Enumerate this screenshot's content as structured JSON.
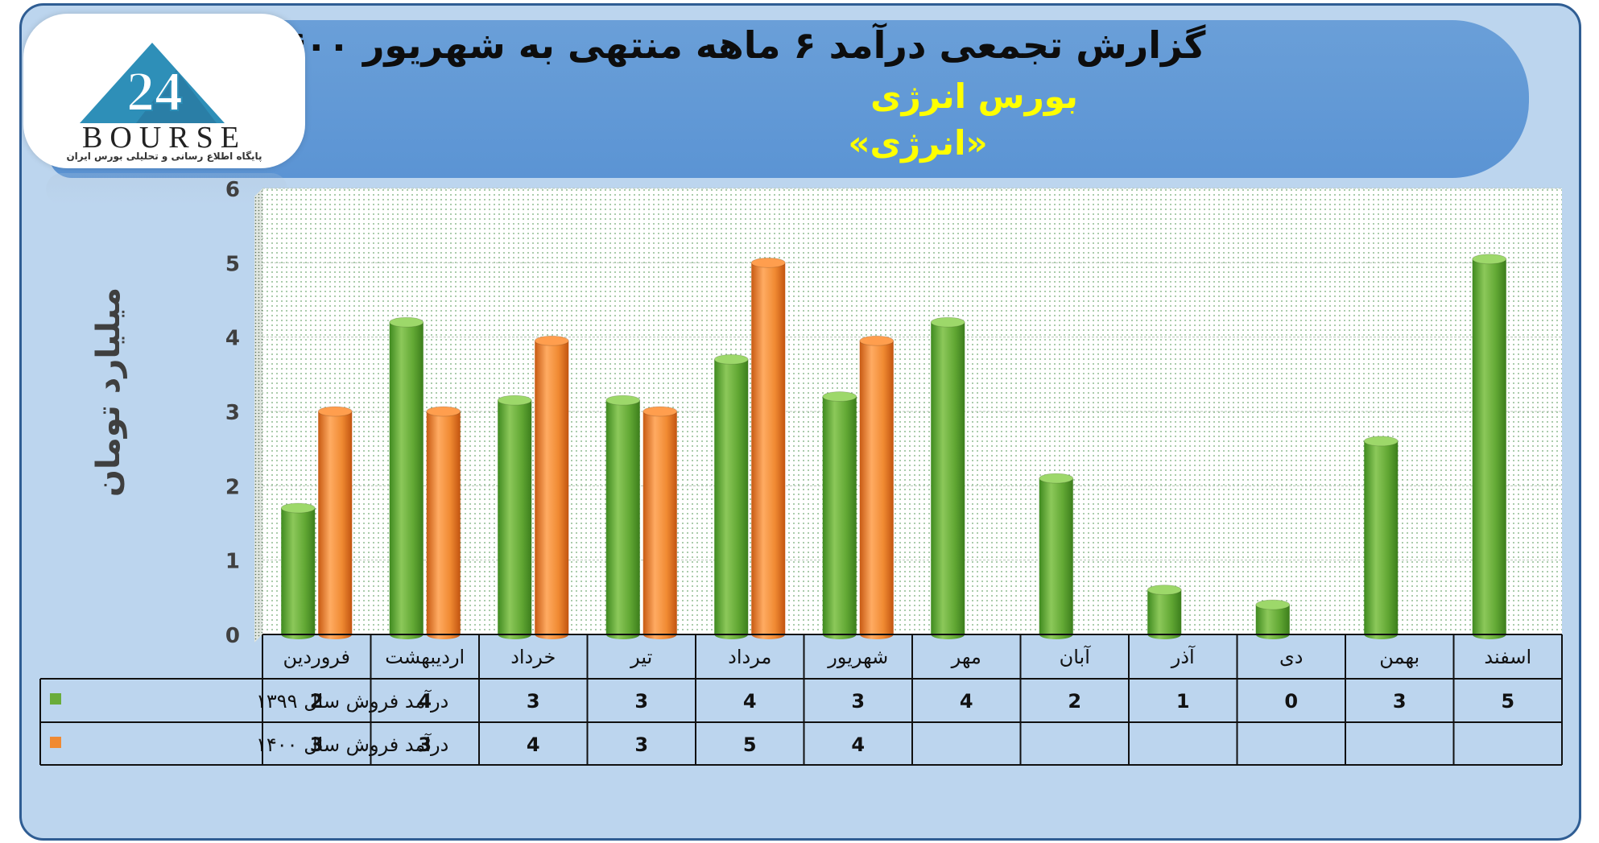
{
  "header": {
    "title": "گزارش تجمعی درآمد ۶ ماهه منتهی به شهریور ۱۴۰۰",
    "subtitle": "بورس انرژی",
    "subtitle2": "«انرژی»"
  },
  "logo": {
    "text": "BOURSE",
    "subtext": "پایگاه اطلاع رسانی و تحلیلی بورس ایران"
  },
  "colors": {
    "series_1399": "#6aac3a",
    "series_1400": "#f08a32",
    "frame_border": "#2f5d93",
    "header_bg": "#5b94d4",
    "subtitle": "#ffff00"
  },
  "chart_data": {
    "type": "bar",
    "ylabel": "میلیارد تومان",
    "ylim": [
      0,
      6
    ],
    "yticks": [
      0,
      1,
      2,
      3,
      4,
      5,
      6
    ],
    "grid": true,
    "legend": "table-left",
    "categories": [
      "فروردین",
      "اردیبهشت",
      "خرداد",
      "تیر",
      "مرداد",
      "شهریور",
      "مهر",
      "آبان",
      "آذر",
      "دی",
      "بهمن",
      "اسفند"
    ],
    "series": [
      {
        "name": "درآمد فروش سال ۱۳۹۹",
        "values": [
          1.7,
          4.2,
          3.15,
          3.15,
          3.7,
          3.2,
          4.2,
          2.1,
          0.6,
          0.4,
          2.6,
          5.05
        ],
        "labels": [
          "2",
          "4",
          "3",
          "3",
          "4",
          "3",
          "4",
          "2",
          "1",
          "0",
          "3",
          "5"
        ]
      },
      {
        "name": "درآمد فروش سال ۱۴۰۰",
        "values": [
          3.0,
          3.0,
          3.95,
          3.0,
          5.0,
          3.95,
          null,
          null,
          null,
          null,
          null,
          null
        ],
        "labels": [
          "3",
          "3",
          "4",
          "3",
          "5",
          "4",
          "",
          "",
          "",
          "",
          "",
          ""
        ]
      }
    ]
  }
}
